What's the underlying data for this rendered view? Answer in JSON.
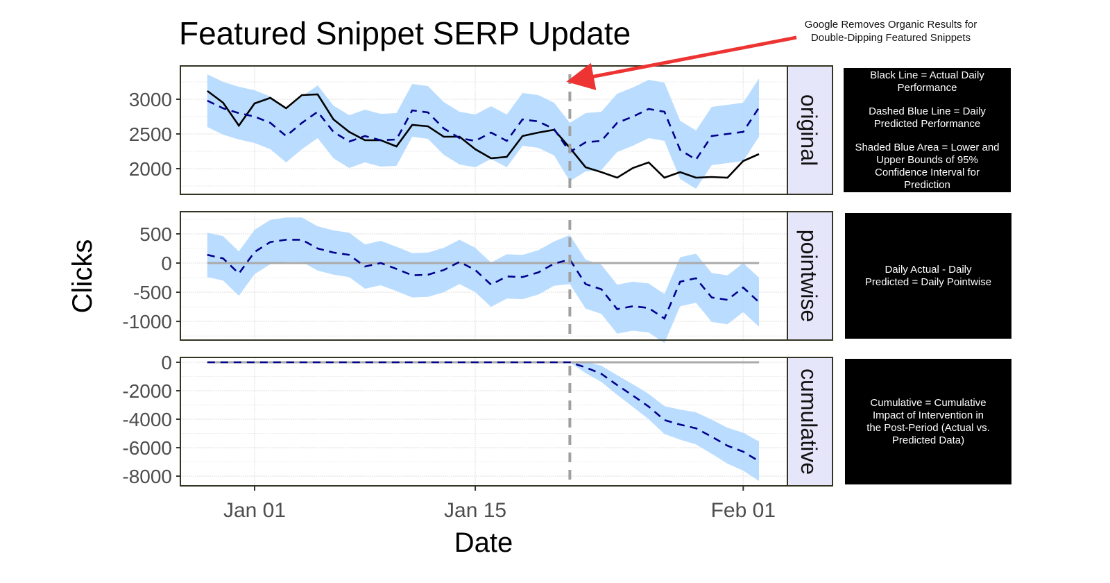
{
  "chart_data": {
    "type": "line",
    "title": "Featured Snippet SERP Update",
    "xlabel": "Date",
    "ylabel": "Clicks",
    "x_ticks": [
      "Jan 01",
      "Jan 15",
      "Feb 01"
    ],
    "intervention_date": "Jan 21",
    "annotation": [
      "Google Removes Organic Results for",
      "Double-Dipping Featured Snippets"
    ],
    "grid": true,
    "colors": {
      "actual": "#000000",
      "predicted": "#00008b",
      "interval": "#b3d9ff",
      "intervention": "#a0a0a0",
      "arrow": "#ee3333",
      "strip": "#e6e6fa"
    },
    "x": [
      "Dec 29",
      "Dec 30",
      "Dec 31",
      "Jan 01",
      "Jan 02",
      "Jan 03",
      "Jan 04",
      "Jan 05",
      "Jan 06",
      "Jan 07",
      "Jan 08",
      "Jan 09",
      "Jan 10",
      "Jan 11",
      "Jan 12",
      "Jan 13",
      "Jan 14",
      "Jan 15",
      "Jan 16",
      "Jan 17",
      "Jan 18",
      "Jan 19",
      "Jan 20",
      "Jan 21",
      "Jan 22",
      "Jan 23",
      "Jan 24",
      "Jan 25",
      "Jan 26",
      "Jan 27",
      "Jan 28",
      "Jan 29",
      "Jan 30",
      "Jan 31",
      "Feb 01",
      "Feb 02"
    ],
    "panels": [
      {
        "strip": "original",
        "ylim": [
          1630,
          3480
        ],
        "y_ticks": [
          "2000",
          "2500",
          "3000"
        ],
        "actual": [
          3120,
          2950,
          2620,
          2940,
          3020,
          2870,
          3060,
          3070,
          2710,
          2530,
          2410,
          2410,
          2320,
          2630,
          2610,
          2460,
          2460,
          2280,
          2150,
          2170,
          2470,
          2520,
          2560,
          2300,
          2020,
          1950,
          1870,
          2010,
          2090,
          1870,
          1950,
          1870,
          1880,
          1870,
          2110,
          2210
        ],
        "predicted": [
          2980,
          2870,
          2800,
          2750,
          2660,
          2470,
          2660,
          2820,
          2530,
          2390,
          2470,
          2410,
          2420,
          2840,
          2810,
          2580,
          2440,
          2400,
          2520,
          2400,
          2710,
          2680,
          2570,
          2240,
          2380,
          2400,
          2660,
          2750,
          2860,
          2820,
          2270,
          2130,
          2470,
          2500,
          2530,
          2880
        ],
        "lower": [
          2600,
          2490,
          2420,
          2370,
          2280,
          2090,
          2280,
          2440,
          2150,
          2010,
          2090,
          2030,
          2040,
          2460,
          2430,
          2200,
          2060,
          2020,
          2140,
          2020,
          2330,
          2300,
          2190,
          1820,
          1960,
          1980,
          2240,
          2330,
          2440,
          2400,
          1850,
          1710,
          2050,
          2080,
          2110,
          2460
        ],
        "upper": [
          3360,
          3250,
          3180,
          3130,
          3040,
          2850,
          3040,
          3200,
          2910,
          2770,
          2850,
          2790,
          2800,
          3220,
          3190,
          2960,
          2820,
          2780,
          2900,
          2780,
          3090,
          3060,
          2950,
          2660,
          2800,
          2820,
          3080,
          3170,
          3280,
          3240,
          2690,
          2550,
          2890,
          2920,
          2950,
          3300
        ],
        "note": [
          "Black Line = Actual Daily\nPerformance",
          "Dashed Blue Line = Daily\nPredicted Performance",
          "Shaded Blue Area = Lower and\nUpper Bounds of 95%\nConfidence Interval for\nPrediction"
        ]
      },
      {
        "strip": "pointwise",
        "ylim": [
          -1320,
          880
        ],
        "y_ticks": [
          "-1000",
          "-500",
          "0",
          "500"
        ],
        "predicted": [
          140,
          80,
          -180,
          190,
          360,
          400,
          400,
          250,
          180,
          140,
          -60,
          0,
          -100,
          -210,
          -200,
          -120,
          20,
          -120,
          -370,
          -230,
          -240,
          -160,
          -10,
          60,
          -360,
          -450,
          -790,
          -740,
          -770,
          -950,
          -320,
          -260,
          -590,
          -630,
          -420,
          -670
        ],
        "lower": [
          -240,
          -300,
          -560,
          -190,
          -20,
          20,
          20,
          -130,
          -200,
          -240,
          -440,
          -380,
          -480,
          -590,
          -580,
          -500,
          -360,
          -500,
          -750,
          -610,
          -620,
          -540,
          -390,
          -360,
          -780,
          -870,
          -1210,
          -1160,
          -1190,
          -1370,
          -740,
          -680,
          -1010,
          -1050,
          -840,
          -1090
        ],
        "upper": [
          520,
          460,
          200,
          570,
          740,
          780,
          780,
          630,
          560,
          520,
          320,
          380,
          280,
          170,
          180,
          260,
          400,
          260,
          10,
          150,
          140,
          220,
          370,
          480,
          60,
          -30,
          -370,
          -320,
          -350,
          -530,
          100,
          160,
          -170,
          -210,
          0,
          -250
        ],
        "note": [
          "Daily Actual - Daily\nPredicted = Daily Pointwise"
        ]
      },
      {
        "strip": "cumulative",
        "ylim": [
          -8680,
          340
        ],
        "y_ticks": [
          "-8000",
          "-6000",
          "-4000",
          "-2000",
          "0"
        ],
        "predicted": [
          0,
          0,
          0,
          0,
          0,
          0,
          0,
          0,
          0,
          0,
          0,
          0,
          0,
          0,
          0,
          0,
          0,
          0,
          0,
          0,
          0,
          0,
          0,
          0,
          -360,
          -810,
          -1600,
          -2340,
          -3110,
          -4060,
          -4380,
          -4640,
          -5230,
          -5860,
          -6280,
          -6950
        ],
        "lower": [
          0,
          0,
          0,
          0,
          0,
          0,
          0,
          0,
          0,
          0,
          0,
          0,
          0,
          0,
          0,
          0,
          0,
          0,
          0,
          0,
          0,
          0,
          0,
          0,
          -760,
          -1380,
          -2290,
          -3140,
          -4000,
          -5040,
          -5440,
          -5770,
          -6430,
          -7120,
          -7610,
          -8340
        ],
        "upper": [
          0,
          0,
          0,
          0,
          0,
          0,
          0,
          0,
          0,
          0,
          0,
          0,
          0,
          0,
          0,
          0,
          0,
          0,
          0,
          0,
          0,
          0,
          0,
          0,
          40,
          -240,
          -910,
          -1540,
          -2220,
          -3080,
          -3320,
          -3510,
          -4030,
          -4600,
          -4950,
          -5560
        ],
        "note": [
          "Cumulative = Cumulative\nImpact of Intervention in\nthe Post-Period (Actual vs.\nPredicted Data)"
        ]
      }
    ]
  }
}
